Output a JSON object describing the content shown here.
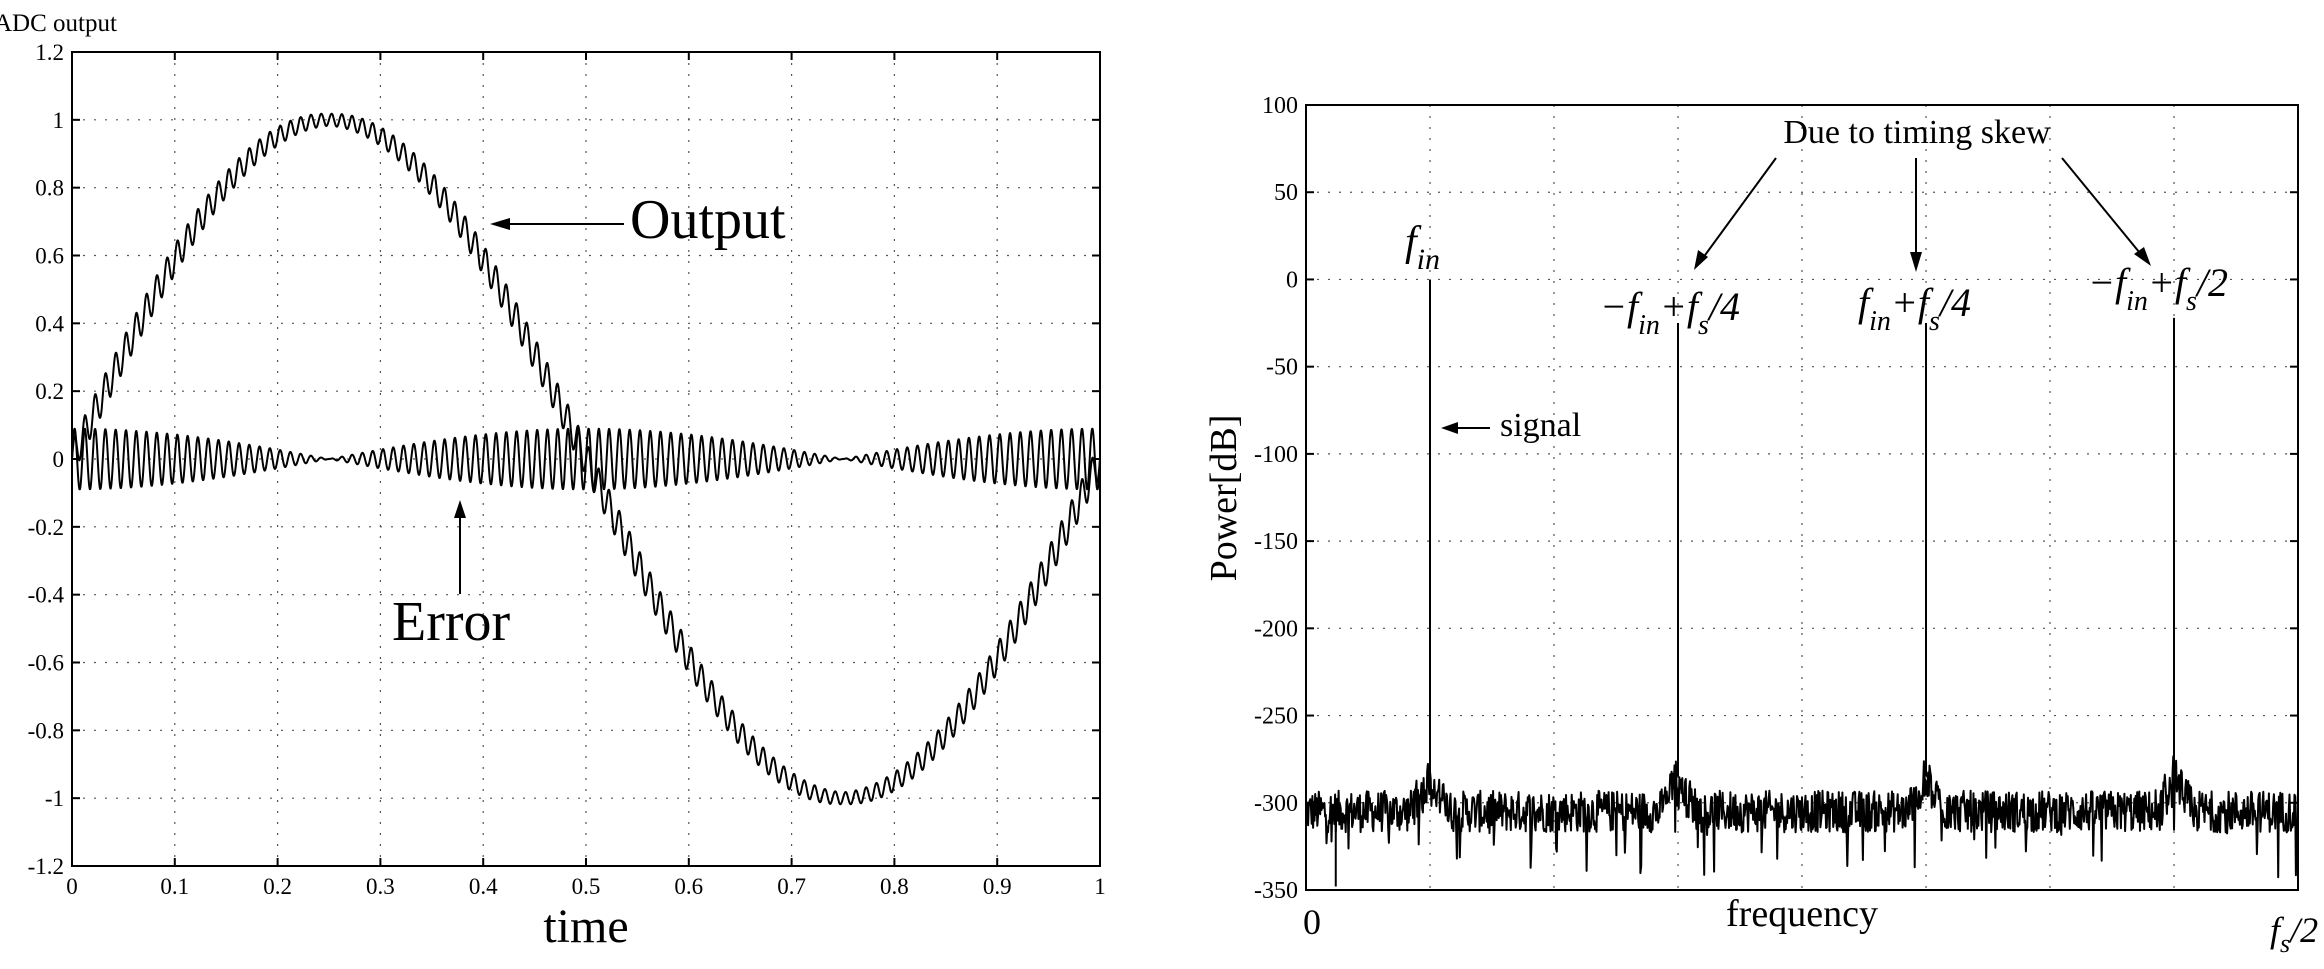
{
  "chart_data": [
    {
      "type": "line",
      "title": "",
      "ylabel": "ADC output",
      "xlabel": "time",
      "xlim": [
        0,
        1
      ],
      "ylim": [
        -1.2,
        1.2
      ],
      "x_ticks": [
        "0",
        "0.1",
        "0.2",
        "0.3",
        "0.4",
        "0.5",
        "0.6",
        "0.7",
        "0.8",
        "0.9",
        "1"
      ],
      "y_ticks": [
        "1.2",
        "1",
        "0.8",
        "0.6",
        "0.4",
        "0.2",
        "0",
        "-0.2",
        "-0.4",
        "-0.6",
        "-0.8",
        "-1",
        "-1.2"
      ],
      "grid": true,
      "series": [
        {
          "name": "Output",
          "form": "sine",
          "frequency": 1,
          "amplitude": 1.0,
          "ripple_amplitude": 0.05,
          "ripple_cycles": 100
        },
        {
          "name": "Error",
          "form": "ripple_envelope",
          "envelope_amplitude": 0.09,
          "ripple_cycles": 100,
          "zero_at": [
            0.25,
            0.75
          ]
        }
      ],
      "annotations": [
        {
          "text": "Output",
          "points_to": {
            "x": 0.4,
            "y": 0.7
          }
        },
        {
          "text": "Error",
          "points_to": {
            "x": 0.38,
            "y": -0.12
          }
        }
      ]
    },
    {
      "type": "line",
      "title": "",
      "ylabel": "Power[dB]",
      "xlabel": "frequency",
      "x_range_labels": [
        "0",
        "f_s/2"
      ],
      "ylim": [
        -350,
        100
      ],
      "y_ticks": [
        "100",
        "50",
        "0",
        "-50",
        "-100",
        "-150",
        "-200",
        "-250",
        "-300",
        "-350"
      ],
      "grid": true,
      "noise_floor_db": -305,
      "noise_spread_db": 12,
      "peaks": [
        {
          "x_fraction": 0.125,
          "power_db": 0,
          "label_main": "f",
          "label_sub": "in",
          "label_rest": ""
        },
        {
          "x_fraction": 0.375,
          "power_db": -25,
          "label_main": "−f",
          "label_sub": "in",
          "label_rest": "+f",
          "label_sub2": "s",
          "label_tail": "/4"
        },
        {
          "x_fraction": 0.625,
          "power_db": -25,
          "label_main": "f",
          "label_sub": "in",
          "label_rest": "+f",
          "label_sub2": "s",
          "label_tail": "/4"
        },
        {
          "x_fraction": 0.875,
          "power_db": -22,
          "label_main": "−f",
          "label_sub": "in",
          "label_rest": "+f",
          "label_sub2": "s",
          "label_tail": "/2"
        }
      ],
      "annotations": [
        {
          "text": "Due to timing skew",
          "points_to_peaks": [
            1,
            2,
            3
          ]
        },
        {
          "text": "signal",
          "points_to_peak": 0
        }
      ]
    }
  ]
}
